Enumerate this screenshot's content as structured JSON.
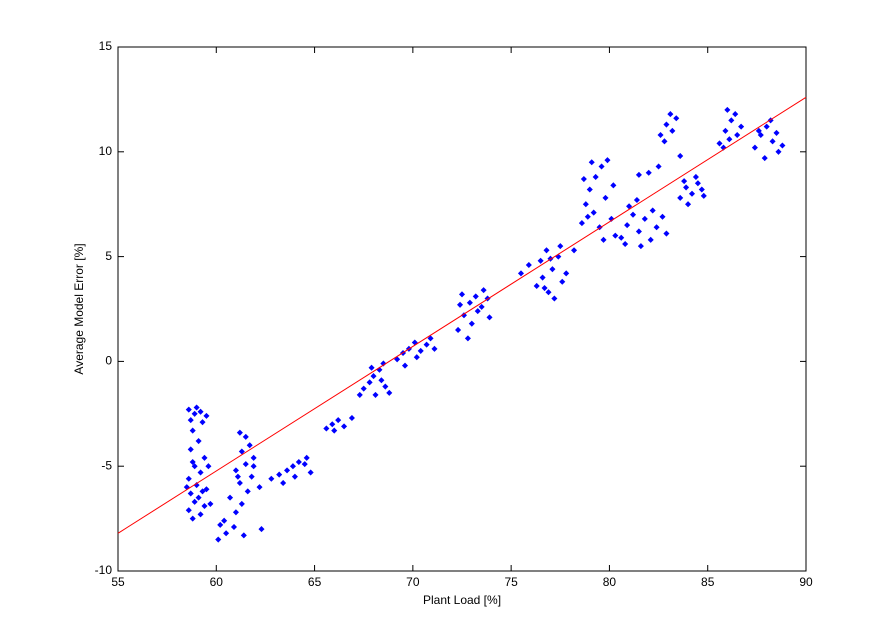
{
  "chart_data": {
    "type": "scatter",
    "x_label": "Plant Load [%]",
    "y_label": "Average Model Error [%]",
    "color": "#0000ff",
    "x": [
      58.6,
      58.9,
      59.2,
      59.5,
      58.7,
      59.0,
      59.3,
      58.8,
      59.1,
      58.7,
      59.4,
      58.9,
      59.2,
      58.6,
      59.0,
      59.5,
      58.7,
      59.1,
      58.9,
      59.4,
      58.6,
      59.2,
      58.8,
      59.6,
      58.5,
      59.3,
      59.7,
      58.8,
      60.1,
      60.5,
      60.9,
      60.4,
      61.0,
      61.3,
      60.7,
      61.6,
      61.2,
      61.8,
      61.0,
      61.5,
      61.9,
      61.3,
      61.7,
      61.5,
      61.2,
      61.9,
      61.1,
      62.2,
      62.3,
      61.4,
      60.2,
      62.8,
      63.2,
      63.6,
      63.9,
      64.2,
      64.6,
      64.8,
      63.4,
      64.0,
      64.5,
      65.6,
      65.9,
      66.2,
      66.5,
      66.9,
      66.0,
      67.5,
      67.8,
      68.0,
      68.3,
      68.6,
      68.1,
      67.9,
      68.4,
      68.8,
      67.3,
      68.5,
      69.2,
      69.5,
      69.8,
      70.1,
      70.4,
      70.7,
      70.2,
      69.6,
      70.9,
      71.1,
      72.3,
      72.6,
      72.9,
      73.2,
      73.5,
      73.8,
      72.5,
      73.0,
      73.3,
      72.8,
      73.6,
      72.4,
      73.9,
      75.5,
      75.9,
      76.3,
      76.6,
      76.9,
      77.1,
      77.4,
      76.8,
      77.6,
      77.2,
      76.5,
      77.8,
      77.0,
      76.7,
      77.5,
      78.2,
      78.6,
      78.8,
      79.0,
      79.3,
      79.6,
      79.9,
      79.2,
      79.5,
      79.8,
      80.1,
      78.7,
      79.1,
      80.2,
      79.7,
      80.3,
      78.9,
      80.6,
      80.9,
      81.2,
      81.5,
      81.8,
      82.1,
      82.4,
      82.7,
      81.0,
      81.6,
      82.2,
      82.9,
      80.8,
      81.4,
      82.6,
      82.9,
      83.2,
      83.4,
      82.8,
      83.1,
      82.0,
      82.5,
      83.6,
      81.5,
      83.6,
      83.9,
      84.2,
      84.5,
      84.8,
      84.0,
      84.4,
      83.8,
      84.7,
      85.6,
      85.9,
      86.2,
      86.5,
      86.0,
      85.8,
      86.4,
      86.7,
      86.1,
      87.4,
      87.7,
      88.0,
      88.3,
      88.6,
      87.9,
      88.2,
      87.6,
      88.5,
      88.8
    ],
    "values": [
      -2.3,
      -2.5,
      -2.4,
      -2.6,
      -2.8,
      -2.2,
      -2.9,
      -3.3,
      -3.8,
      -4.2,
      -4.6,
      -5.0,
      -5.3,
      -5.6,
      -5.9,
      -6.1,
      -6.3,
      -6.5,
      -6.7,
      -6.9,
      -7.1,
      -7.3,
      -7.5,
      -5.0,
      -6.0,
      -6.2,
      -6.8,
      -4.8,
      -8.5,
      -8.2,
      -7.9,
      -7.6,
      -7.2,
      -6.8,
      -6.5,
      -6.2,
      -5.8,
      -5.5,
      -5.2,
      -4.9,
      -4.6,
      -4.3,
      -4.0,
      -3.6,
      -3.4,
      -5.0,
      -5.5,
      -6.0,
      -8.0,
      -8.3,
      -7.8,
      -5.6,
      -5.4,
      -5.2,
      -5.0,
      -4.8,
      -4.6,
      -5.3,
      -5.8,
      -5.5,
      -4.9,
      -3.2,
      -3.0,
      -2.8,
      -3.1,
      -2.7,
      -3.3,
      -1.3,
      -1.0,
      -0.7,
      -0.4,
      -1.2,
      -1.6,
      -0.3,
      -0.9,
      -1.5,
      -1.6,
      -0.1,
      0.1,
      0.4,
      0.6,
      0.9,
      0.5,
      0.8,
      0.2,
      -0.2,
      1.1,
      0.6,
      1.5,
      2.2,
      2.8,
      3.1,
      2.6,
      3.0,
      3.2,
      1.8,
      2.4,
      1.1,
      3.4,
      2.7,
      2.1,
      4.2,
      4.6,
      3.6,
      4.0,
      3.3,
      4.4,
      5.0,
      5.3,
      3.8,
      3.0,
      4.8,
      4.2,
      4.9,
      3.5,
      5.5,
      5.3,
      6.6,
      7.5,
      8.2,
      8.8,
      9.3,
      9.6,
      7.1,
      6.4,
      7.8,
      6.8,
      8.7,
      9.5,
      8.4,
      5.8,
      6.0,
      6.9,
      5.9,
      6.5,
      7.0,
      6.2,
      6.8,
      5.8,
      6.4,
      6.9,
      7.4,
      5.5,
      7.2,
      6.1,
      5.6,
      7.7,
      10.8,
      11.3,
      11.0,
      11.6,
      10.5,
      11.8,
      9.0,
      9.3,
      9.8,
      8.9,
      7.8,
      8.3,
      8.0,
      8.5,
      7.9,
      7.5,
      8.8,
      8.6,
      8.2,
      10.4,
      11.0,
      11.5,
      10.8,
      12.0,
      10.2,
      11.8,
      11.2,
      10.6,
      10.2,
      10.8,
      11.2,
      10.5,
      10.0,
      9.7,
      11.5,
      11.0,
      10.9,
      10.3
    ],
    "fit": {
      "x": [
        55,
        90
      ],
      "values": [
        -8.2,
        12.6
      ],
      "color": "#ff0000"
    },
    "xlim": [
      55,
      90
    ],
    "ylim": [
      -10,
      15
    ],
    "xticks": [
      55,
      60,
      65,
      70,
      75,
      80,
      85,
      90
    ],
    "yticks": [
      -10,
      -5,
      0,
      5,
      10,
      15
    ]
  }
}
